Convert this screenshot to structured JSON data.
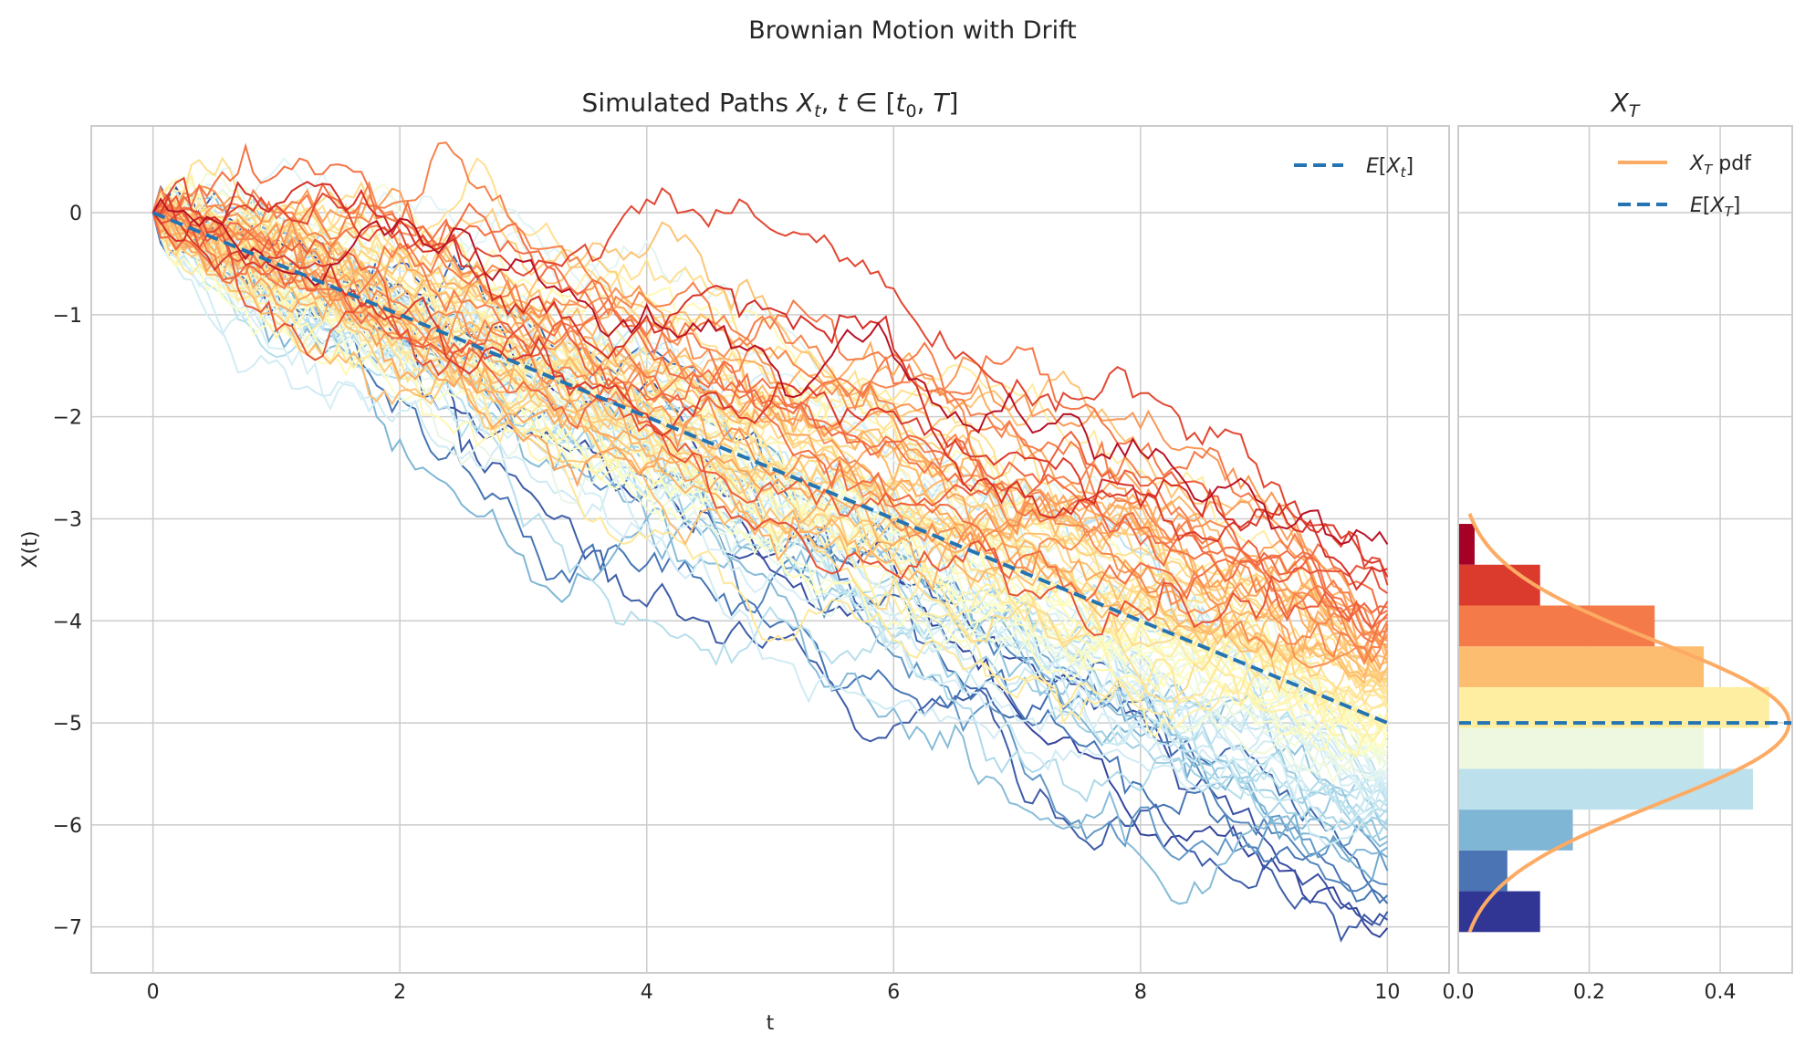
{
  "figure_title": "Brownian Motion with Drift",
  "chart_data": [
    {
      "type": "line",
      "title": "Simulated Paths X_t, t ∈ [t_0, T]",
      "xlabel": "t",
      "ylabel": "X(t)",
      "xlim": [
        -0.5,
        10.5
      ],
      "ylim": [
        -7.45,
        0.85
      ],
      "x_ticks": [
        "0",
        "2",
        "4",
        "6",
        "8",
        "10"
      ],
      "y_ticks": [
        "0",
        "−1",
        "−2",
        "−3",
        "−4",
        "−5",
        "−6",
        "−7"
      ],
      "x_tick_values": [
        0,
        2,
        4,
        6,
        8,
        10
      ],
      "y_tick_values": [
        0,
        -1,
        -2,
        -3,
        -4,
        -5,
        -6,
        -7
      ],
      "grid": true,
      "legend": {
        "position": "top-right",
        "entries": [
          "E[X_t]"
        ]
      },
      "mean_line": {
        "x": [
          0,
          10
        ],
        "y": [
          0,
          -5
        ],
        "color": "#2474b3",
        "style": "dashed"
      },
      "drift": -0.5,
      "t_end": 10,
      "n_paths": 100,
      "colormap": "RdYlBu",
      "colormap_stops": [
        "#a50026",
        "#d73027",
        "#f46d43",
        "#fdae61",
        "#fee090",
        "#ffffbf",
        "#e0f3f8",
        "#abd9e9",
        "#74add1",
        "#4575b4",
        "#313695"
      ],
      "terminal_range": [
        -7.1,
        -3.1
      ]
    },
    {
      "type": "bar",
      "orientation": "horizontal",
      "title": "X_T",
      "xlim": [
        0,
        0.51
      ],
      "x_ticks": [
        "0.0",
        "0.2",
        "0.4"
      ],
      "x_tick_values": [
        0,
        0.2,
        0.4
      ],
      "bins": [
        {
          "y0": -7.05,
          "y1": -6.65,
          "density": 0.125,
          "color": "#313695"
        },
        {
          "y0": -6.65,
          "y1": -6.25,
          "density": 0.075,
          "color": "#4a74b4"
        },
        {
          "y0": -6.25,
          "y1": -5.85,
          "density": 0.175,
          "color": "#7fb5d5"
        },
        {
          "y0": -5.85,
          "y1": -5.45,
          "density": 0.45,
          "color": "#bde1ec"
        },
        {
          "y0": -5.45,
          "y1": -5.05,
          "density": 0.375,
          "color": "#eef7e0"
        },
        {
          "y0": -5.05,
          "y1": -4.65,
          "density": 0.475,
          "color": "#fdeea2"
        },
        {
          "y0": -4.65,
          "y1": -4.25,
          "density": 0.375,
          "color": "#fdbd71"
        },
        {
          "y0": -4.25,
          "y1": -3.85,
          "density": 0.3,
          "color": "#f47a4a"
        },
        {
          "y0": -3.85,
          "y1": -3.45,
          "density": 0.125,
          "color": "#db3b2c"
        },
        {
          "y0": -3.45,
          "y1": -3.05,
          "density": 0.025,
          "color": "#a50026"
        }
      ],
      "pdf": {
        "mean": -5,
        "std": 0.79,
        "y_range": [
          -7.05,
          -2.95
        ],
        "color": "#fdab64"
      },
      "mean_line": {
        "y": -5,
        "color": "#2474b3",
        "style": "dashed"
      },
      "legend": {
        "position": "top-right",
        "entries": [
          "X_T pdf",
          "E[X_T]"
        ]
      }
    }
  ]
}
